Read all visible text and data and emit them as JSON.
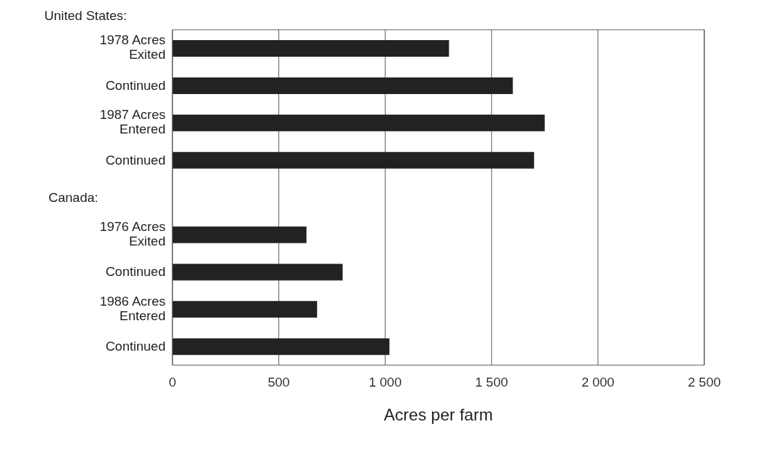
{
  "chart_data": {
    "type": "bar",
    "orientation": "horizontal",
    "xlabel": "Acres per farm",
    "categories": [
      "1978 Acres\nExited",
      "Continued",
      "1987 Acres\nEntered",
      "Continued",
      null,
      "1976 Acres\nExited",
      "Continued",
      "1986 Acres\nEntered",
      "Continued"
    ],
    "values": [
      1300,
      1600,
      1750,
      1700,
      null,
      630,
      800,
      680,
      1020
    ],
    "color": "#222222",
    "xlim": [
      0,
      2500
    ],
    "xticks": [
      0,
      500,
      {
        "value": 1000,
        "label": "1 000"
      },
      {
        "value": 1500,
        "label": "1 500"
      },
      {
        "value": 2000,
        "label": "2 000"
      },
      {
        "value": 2500,
        "label": "2 500"
      }
    ],
    "grid": "x",
    "annotations": [
      "United States:",
      "Canada:"
    ]
  }
}
